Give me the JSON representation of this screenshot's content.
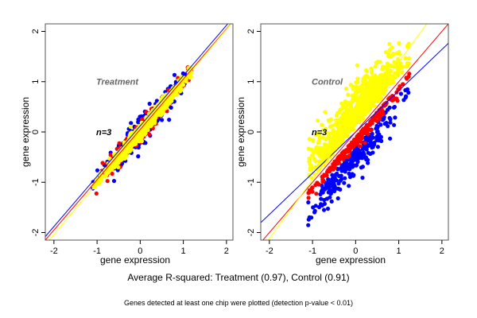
{
  "chart_data": [
    {
      "type": "scatter",
      "title": "Treatment",
      "annotation": "n=3",
      "xlabel": "gene expression",
      "ylabel": "gene expression",
      "xlim": [
        -2.2,
        2.15
      ],
      "ylim": [
        -2.15,
        2.15
      ],
      "xticks": [
        -2,
        -1,
        0,
        1,
        2
      ],
      "yticks": [
        -2,
        -1,
        0,
        1,
        2
      ],
      "grid": false,
      "cloud": {
        "center": [
          0.05,
          0.05
        ],
        "x_range": [
          -1.1,
          1.2
        ],
        "spread_along": 0.48,
        "spread_across": 0.07
      },
      "series": [
        {
          "name": "blue",
          "color": "#0000ff",
          "spread_scale": 1.9,
          "shift": 0.0
        },
        {
          "name": "red",
          "color": "#ff0000",
          "spread_scale": 1.55,
          "shift": -0.02
        },
        {
          "name": "yellow",
          "color": "#ffff00",
          "spread_scale": 1.0,
          "shift": 0.0
        }
      ],
      "fit_lines": [
        {
          "color": "#0000ff",
          "slope": 1.0,
          "intercept": 0.12
        },
        {
          "color": "#ff0000",
          "slope": 1.0,
          "intercept": 0.05
        },
        {
          "color": "#ffff00",
          "slope": 1.02,
          "intercept": 0.0
        }
      ]
    },
    {
      "type": "scatter",
      "title": "Control",
      "annotation": "n=3",
      "xlabel": "gene expression",
      "ylabel": "gene expression",
      "xlim": [
        -2.2,
        2.15
      ],
      "ylim": [
        -2.15,
        2.15
      ],
      "xticks": [
        -2,
        -1,
        0,
        1,
        2
      ],
      "yticks": [
        -2,
        -1,
        0,
        1,
        2
      ],
      "grid": false,
      "cloud": {
        "center": [
          0.0,
          0.05
        ],
        "x_range": [
          -1.1,
          1.25
        ],
        "spread_along": 0.5,
        "spread_across": 0.2
      },
      "series": [
        {
          "name": "blue",
          "color": "#0000ff",
          "spread_scale": 1.0,
          "shift": -0.3
        },
        {
          "name": "red",
          "color": "#ff0000",
          "spread_scale": 0.5,
          "shift": -0.12
        },
        {
          "name": "yellow",
          "color": "#ffff00",
          "spread_scale": 1.0,
          "shift": 0.12
        }
      ],
      "fit_lines": [
        {
          "color": "#0000ff",
          "slope": 0.82,
          "intercept": 0.0
        },
        {
          "color": "#ff0000",
          "slope": 1.0,
          "intercept": 0.0
        },
        {
          "color": "#ffff00",
          "slope": 1.17,
          "intercept": 0.22
        }
      ]
    }
  ],
  "captions": {
    "main": "Average R-squared: Treatment (0.97), Control (0.91)",
    "sub": "Genes detected at least one chip were plotted (detection p-value < 0.01)"
  }
}
